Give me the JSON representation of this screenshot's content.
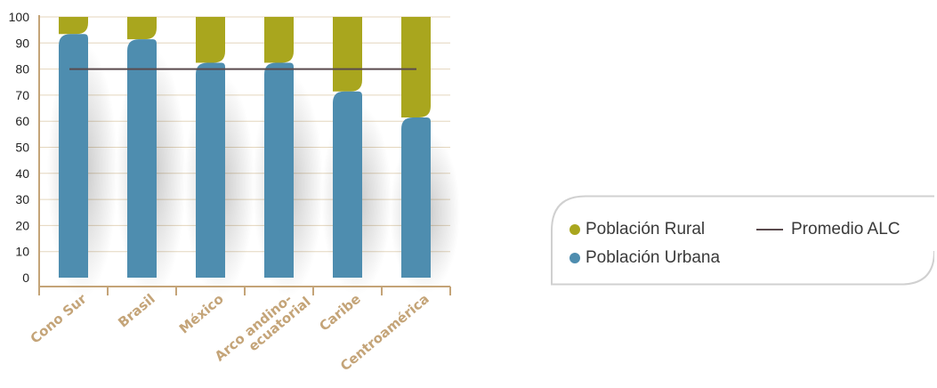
{
  "chart_data": {
    "type": "bar",
    "stacked": true,
    "categories": [
      "Cono Sur",
      "Brasil",
      "México",
      "Arco andino-\necuatorial",
      "Caribe",
      "Centroamérica"
    ],
    "series": [
      {
        "name": "Población Urbana",
        "values": [
          89,
          87,
          78,
          78,
          67,
          57
        ]
      },
      {
        "name": "Población Rural",
        "values": [
          11,
          13,
          22,
          22,
          33,
          43
        ]
      }
    ],
    "reference_line": {
      "name": "Promedio ALC",
      "value": 80
    },
    "yticks": [
      0,
      10,
      20,
      30,
      40,
      50,
      60,
      70,
      80,
      90,
      100
    ],
    "ylim": [
      0,
      100
    ],
    "grid": true,
    "legend_position": "right",
    "colors": {
      "urbana": "#4e8daf",
      "rural": "#a9a61e",
      "promedio": "#5a4a4d",
      "axis": "#c4a478",
      "grid": "#e4d6bd"
    }
  },
  "legend": {
    "rural": "Población Rural",
    "urbana": "Población Urbana",
    "promedio": "Promedio ALC"
  }
}
